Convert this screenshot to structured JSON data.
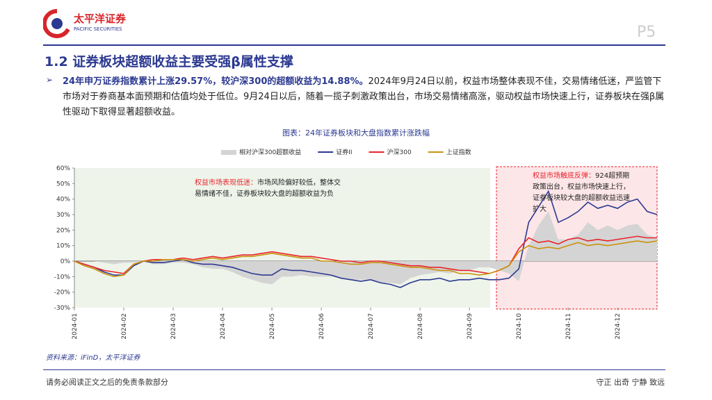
{
  "header": {
    "logo_cn": "太平洋证券",
    "logo_en": "PACIFIC SECURITIES",
    "page": "P5",
    "title": "1.2 证券板块超额收益主要受强β属性支撑"
  },
  "bullet": {
    "bold": "24年申万证券指数累计上涨29.57%，较沪深300的超额收益为14.88%。",
    "text": "2024年9月24日以前，权益市场整体表现不佳，交易情绪低迷，严监管下市场对于券商基本面预期和估值均处于低位。9月24日以后，随着一揽子刺激政策出台，市场交易情绪高涨，驱动权益市场快速上行，证券板块在强β属性驱动下取得显著超额收益。"
  },
  "chart_data": {
    "type": "line",
    "title": "图表：24年证券板块和大盘指数累计涨跌幅",
    "categories": [
      "2024-01",
      null,
      null,
      null,
      null,
      "2024-02",
      null,
      null,
      null,
      null,
      "2024-03",
      null,
      null,
      null,
      null,
      "2024-04",
      null,
      null,
      null,
      null,
      "2024-05",
      null,
      null,
      null,
      null,
      "2024-06",
      null,
      null,
      null,
      null,
      "2024-07",
      null,
      null,
      null,
      null,
      "2024-08",
      null,
      null,
      null,
      null,
      "2024-09",
      null,
      null,
      null,
      null,
      "2024-10",
      null,
      null,
      null,
      null,
      "2024-11",
      null,
      null,
      null,
      null,
      "2024-12",
      null,
      null,
      null,
      null
    ],
    "series": [
      {
        "name": "相对沪深300超额收益",
        "type": "area",
        "color": "#d4d4d4",
        "values": [
          0,
          0,
          0,
          -1,
          -2,
          -1,
          -1,
          0,
          -2,
          -2,
          -1,
          -1,
          -2,
          -4,
          -5,
          -5,
          -7,
          -10,
          -12,
          -14,
          -15,
          -10,
          -10,
          -9,
          -10,
          -10,
          -10,
          -11,
          -12,
          -12,
          -12,
          -14,
          -14,
          -15,
          -11,
          -9,
          -8,
          -7,
          -8,
          -6,
          -6,
          -4,
          -4,
          -6,
          -8,
          -13,
          10,
          23,
          32,
          14,
          14,
          17,
          25,
          20,
          23,
          20,
          23,
          24,
          17,
          15
        ]
      },
      {
        "name": "证券II",
        "type": "line",
        "color": "#2b3990",
        "values": [
          0,
          -2,
          -4,
          -7,
          -9,
          -9,
          -3,
          0,
          -1,
          -1,
          0,
          1,
          -1,
          -2,
          -2,
          -3,
          -4,
          -6,
          -8,
          -9,
          -9,
          -5,
          -6,
          -6,
          -7,
          -8,
          -9,
          -11,
          -12,
          -13,
          -12,
          -14,
          -15,
          -17,
          -14,
          -12,
          -12,
          -11,
          -13,
          -12,
          -12,
          -11,
          -12,
          -12,
          -11,
          -5,
          25,
          35,
          45,
          25,
          28,
          32,
          38,
          34,
          36,
          34,
          38,
          40,
          32,
          30
        ]
      },
      {
        "name": "沪深300",
        "type": "line",
        "color": "#e8232a",
        "values": [
          0,
          -2,
          -4,
          -6,
          -7,
          -8,
          -2,
          0,
          1,
          1,
          1,
          2,
          1,
          2,
          3,
          2,
          3,
          4,
          4,
          5,
          6,
          5,
          4,
          3,
          3,
          2,
          1,
          0,
          0,
          -1,
          0,
          0,
          -1,
          -2,
          -3,
          -3,
          -4,
          -4,
          -5,
          -6,
          -6,
          -7,
          -8,
          -6,
          -3,
          8,
          15,
          12,
          13,
          11,
          14,
          15,
          13,
          14,
          13,
          14,
          15,
          16,
          15,
          15
        ]
      },
      {
        "name": "上证指数",
        "type": "line",
        "color": "#c9930c",
        "values": [
          0,
          -3,
          -5,
          -8,
          -10,
          -9,
          -2,
          0,
          0,
          1,
          1,
          1,
          0,
          1,
          2,
          1,
          2,
          3,
          3,
          4,
          5,
          4,
          3,
          2,
          2,
          0,
          0,
          -1,
          -2,
          -2,
          -1,
          -1,
          -2,
          -3,
          -4,
          -4,
          -5,
          -6,
          -6,
          -8,
          -8,
          -9,
          -8,
          -6,
          -3,
          6,
          10,
          8,
          9,
          8,
          10,
          12,
          10,
          11,
          10,
          11,
          12,
          13,
          12,
          13
        ]
      }
    ],
    "ylim": [
      -30,
      60
    ],
    "yticks": [
      {
        "value": -30,
        "label": "-30%"
      },
      {
        "value": -20,
        "label": "-20%"
      },
      {
        "value": -10,
        "label": "-10%"
      },
      {
        "value": 0,
        "label": "0%"
      },
      {
        "value": 10,
        "label": "10%"
      },
      {
        "value": 20,
        "label": "20%"
      },
      {
        "value": 30,
        "label": "30%"
      },
      {
        "value": 40,
        "label": "40%"
      },
      {
        "value": 50,
        "label": "50%"
      },
      {
        "value": 60,
        "label": "60%"
      }
    ],
    "annotations": [
      {
        "head": "权益市场表现低迷：",
        "text": "市场风险偏好较低，整体交易情绪不佳，证券板块较大盘的超额收益为负"
      },
      {
        "head": "权益市场触底反弹：",
        "text": "924超预期政策出台，权益市场快速上行，证券板块较大盘的超额收益迅速扩大"
      }
    ],
    "source": "资料来源：iFinD，太平洋证券"
  },
  "footer": {
    "left": "请务必阅读正文之后的免责条款部分",
    "right": "守正 出奇 宁静 致远"
  }
}
